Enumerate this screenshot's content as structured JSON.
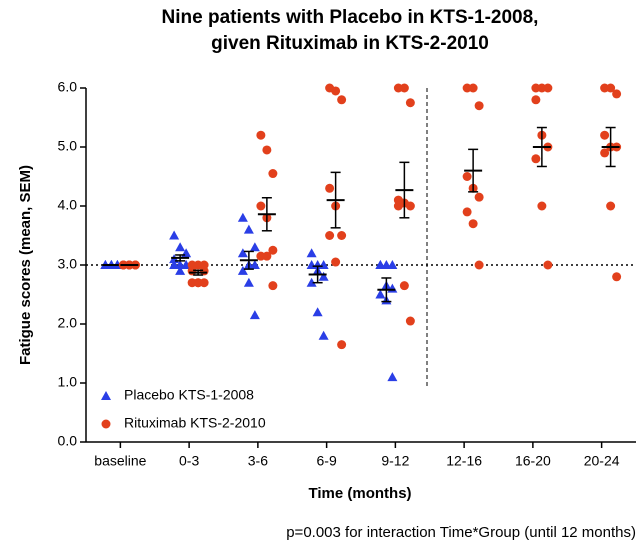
{
  "chart_data": {
    "type": "dot",
    "title": [
      "Nine patients with Placebo  in KTS-1-2008,",
      "given Rituximab in KTS-2-2010"
    ],
    "x_label": "Time (months)",
    "y_label": "Fatigue scores (mean, SEM)",
    "annotation": "p=0.003 for interaction Time*Group (until 12 months)",
    "categories": [
      "baseline",
      "0-3",
      "3-6",
      "6-9",
      "9-12",
      "12-16",
      "16-20",
      "20-24"
    ],
    "ylim": [
      0,
      6
    ],
    "yticks": [
      {
        "value": 0,
        "label": "0.0"
      },
      {
        "value": 1,
        "label": "1.0"
      },
      {
        "value": 2,
        "label": "2.0"
      },
      {
        "value": 3,
        "label": "3.0"
      },
      {
        "value": 4,
        "label": "4.0"
      },
      {
        "value": 5,
        "label": "5.0"
      },
      {
        "value": 6,
        "label": "6.0"
      }
    ],
    "reference_line": 3,
    "legend": "lower left",
    "series": [
      {
        "name": "Placebo KTS-1-2008",
        "color": "#2a3ee6",
        "marker": "triangle",
        "values": [
          [
            3,
            3,
            3,
            3,
            3,
            3,
            3,
            3,
            3
          ],
          [
            3.5,
            3.3,
            3.2,
            3.1,
            3.0,
            3.0,
            3.0,
            2.9,
            3.0
          ],
          [
            3.8,
            3.6,
            3.3,
            3.2,
            3.0,
            3.0,
            2.9,
            2.7,
            2.15
          ],
          [
            3.2,
            3.0,
            3.0,
            3.0,
            2.9,
            2.8,
            2.7,
            2.2,
            1.8
          ],
          [
            3.0,
            3.0,
            3.0,
            3.0,
            2.65,
            2.6,
            2.5,
            2.4,
            1.1
          ],
          null,
          null,
          null
        ],
        "mean": [
          3.0,
          3.12,
          3.08,
          2.84,
          2.58,
          null,
          null,
          null
        ],
        "sem": [
          0,
          0.05,
          0.15,
          0.14,
          0.2,
          null,
          null,
          null
        ]
      },
      {
        "name": "Rituximab KTS-2-2010",
        "color": "#e2401c",
        "marker": "circle",
        "values": [
          [
            3,
            3,
            3,
            3,
            3,
            3,
            3,
            3,
            3
          ],
          [
            3.0,
            3.0,
            2.9,
            2.9,
            2.7,
            2.7,
            2.7,
            2.7,
            3.0
          ],
          [
            5.2,
            4.95,
            4.55,
            4.0,
            3.8,
            3.25,
            3.15,
            3.15,
            2.65
          ],
          [
            6.0,
            5.95,
            5.8,
            4.3,
            4.0,
            3.5,
            3.5,
            3.05,
            1.65
          ],
          [
            6.0,
            6.0,
            5.75,
            4.1,
            4.05,
            4.0,
            4.0,
            2.65,
            2.05
          ],
          [
            6.0,
            6.0,
            5.7,
            4.5,
            4.3,
            4.15,
            3.9,
            3.7,
            3.0
          ],
          [
            6.0,
            6.0,
            6.0,
            5.8,
            5.2,
            5.0,
            4.8,
            4.0,
            3.0
          ],
          [
            6.0,
            6.0,
            5.9,
            5.2,
            5.0,
            5.0,
            4.9,
            4.0,
            2.8
          ]
        ],
        "mean": [
          3.0,
          2.87,
          3.86,
          4.1,
          4.27,
          4.6,
          5.0,
          5.0
        ],
        "sem": [
          0,
          0.04,
          0.28,
          0.47,
          0.47,
          0.36,
          0.33,
          0.33
        ]
      }
    ]
  }
}
